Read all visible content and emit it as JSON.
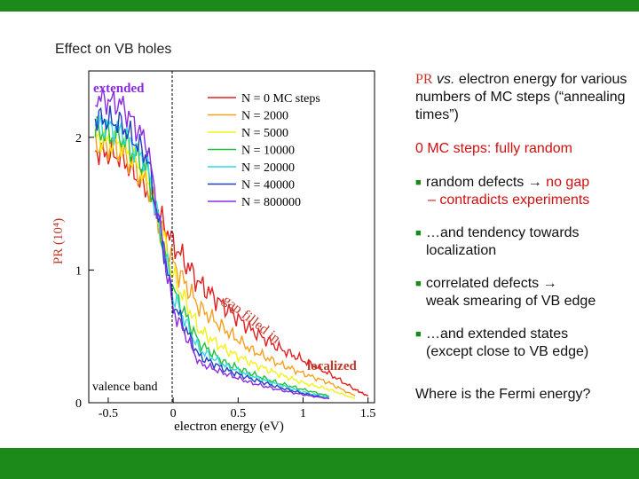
{
  "slide": {
    "title": "Effect on VB holes",
    "colors": {
      "frame": "#1b8a1b",
      "accent_red": "#d01010"
    }
  },
  "text_panel": {
    "caption_pr": "PR",
    "caption_vs": "vs.",
    "caption_rest": " electron energy for various numbers of MC steps (“annealing times”)",
    "zero_steps": "0 MC steps: fully random",
    "bullet1_a": "random defects",
    "bullet1_arrow": " → ",
    "bullet1_b": "no gap",
    "bullet1_c": "– contradicts experiments",
    "bullet2": "…and tendency towards localization",
    "bullet3_a": "correlated defects →",
    "bullet3_b": "weak smearing of VB edge",
    "bullet4_a": "…and extended states",
    "bullet4_b": "(except close to VB edge)",
    "question": "Where is the Fermi energy?"
  },
  "chart_data": {
    "type": "line",
    "xlabel": "electron energy (eV)",
    "ylabel": "PR (10⁴)",
    "xlim": [
      -0.65,
      1.55
    ],
    "ylim": [
      0,
      2.5
    ],
    "x_ticks": [
      "-0.5",
      "0",
      "0.5",
      "1",
      "1.5"
    ],
    "y_ticks": [
      "0",
      "1",
      "2"
    ],
    "annotations": {
      "extended": "extended",
      "localized": "localized",
      "gap_filled": "gap filled in",
      "valence_band": "valence band"
    },
    "legend_position": "top-right",
    "series": [
      {
        "name": "N = 0 MC steps",
        "color": "#e02020",
        "x": [
          -0.6,
          -0.4,
          -0.2,
          0,
          0.2,
          0.4,
          0.6,
          0.8,
          1.0,
          1.2,
          1.4,
          1.5
        ],
        "y": [
          1.9,
          1.85,
          1.6,
          1.2,
          0.9,
          0.72,
          0.55,
          0.42,
          0.32,
          0.22,
          0.1,
          0.05
        ]
      },
      {
        "name": "N = 2000",
        "color": "#f4a020",
        "x": [
          -0.6,
          -0.4,
          -0.2,
          0,
          0.2,
          0.4,
          0.6,
          0.8,
          1.0,
          1.2,
          1.4
        ],
        "y": [
          1.95,
          1.9,
          1.65,
          1.05,
          0.72,
          0.55,
          0.4,
          0.3,
          0.22,
          0.15,
          0.05
        ]
      },
      {
        "name": "N = 5000",
        "color": "#f2f21a",
        "x": [
          -0.6,
          -0.4,
          -0.2,
          0,
          0.2,
          0.4,
          0.6,
          0.8,
          1.0,
          1.2,
          1.4
        ],
        "y": [
          2.0,
          1.95,
          1.7,
          0.95,
          0.55,
          0.4,
          0.3,
          0.22,
          0.15,
          0.1,
          0.03
        ]
      },
      {
        "name": "N = 10000",
        "color": "#22c03a",
        "x": [
          -0.6,
          -0.4,
          -0.2,
          0,
          0.2,
          0.4,
          0.6,
          0.8,
          1.0,
          1.2
        ],
        "y": [
          2.05,
          2.0,
          1.75,
          0.85,
          0.45,
          0.3,
          0.22,
          0.15,
          0.1,
          0.05
        ]
      },
      {
        "name": "N = 20000",
        "color": "#30d8e0",
        "x": [
          -0.6,
          -0.4,
          -0.2,
          0,
          0.2,
          0.4,
          0.6,
          0.8,
          1.0,
          1.2
        ],
        "y": [
          2.1,
          2.05,
          1.8,
          0.8,
          0.4,
          0.28,
          0.2,
          0.14,
          0.08,
          0.04
        ]
      },
      {
        "name": "N = 40000",
        "color": "#2040c0",
        "x": [
          -0.6,
          -0.4,
          -0.2,
          0,
          0.2,
          0.4,
          0.6,
          0.8,
          1.0,
          1.2
        ],
        "y": [
          2.15,
          2.1,
          1.85,
          0.75,
          0.35,
          0.25,
          0.18,
          0.12,
          0.07,
          0.03
        ]
      },
      {
        "name": "N = 800000",
        "color": "#8a2be2",
        "x": [
          -0.6,
          -0.4,
          -0.2,
          0,
          0.2,
          0.4,
          0.6,
          0.8,
          1.0,
          1.2
        ],
        "y": [
          2.3,
          2.25,
          1.95,
          0.7,
          0.3,
          0.22,
          0.15,
          0.1,
          0.06,
          0.03
        ]
      }
    ]
  }
}
